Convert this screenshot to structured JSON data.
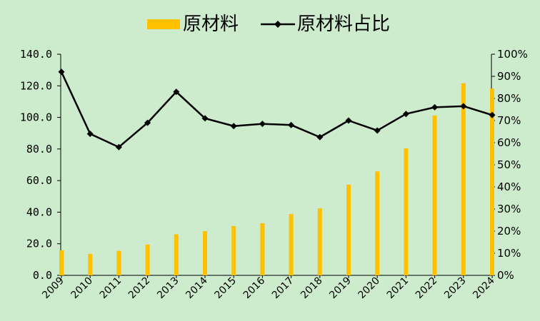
{
  "legend": {
    "bar_label": "原材料",
    "line_label": "原材料占比"
  },
  "colors": {
    "background": "#cdeccd",
    "bar": "#ffc000",
    "line": "#000000"
  },
  "chart_data": {
    "type": "bar",
    "categories": [
      "2009",
      "2010",
      "2011",
      "2012",
      "2013",
      "2014",
      "2015",
      "2016",
      "2017",
      "2018",
      "2019",
      "2020",
      "2021",
      "2022",
      "2023",
      "2024"
    ],
    "series": [
      {
        "name": "原材料",
        "type": "bar",
        "axis": "left",
        "values": [
          15.8,
          13.6,
          15.5,
          19.5,
          26.0,
          28.0,
          31.2,
          33.0,
          38.8,
          42.4,
          57.4,
          65.8,
          80.4,
          101.2,
          121.6,
          118.2
        ]
      },
      {
        "name": "原材料占比",
        "type": "line",
        "axis": "right",
        "values": [
          0.92,
          0.64,
          0.58,
          0.69,
          0.83,
          0.71,
          0.675,
          0.685,
          0.68,
          0.625,
          0.7,
          0.655,
          0.73,
          0.76,
          0.765,
          0.725
        ]
      }
    ],
    "y_axis": {
      "ylim": [
        0,
        140
      ],
      "ticks": [
        "140.0",
        "120.0",
        "100.0",
        "80.0",
        "60.0",
        "40.0",
        "20.0",
        "0.0"
      ]
    },
    "y2_axis": {
      "ylim": [
        0,
        1
      ],
      "ticks": [
        "100%",
        "90%",
        "80%",
        "70%",
        "60%",
        "50%",
        "40%",
        "30%",
        "20%",
        "10%",
        "0%"
      ]
    },
    "legend_position": "top",
    "grid": false
  }
}
